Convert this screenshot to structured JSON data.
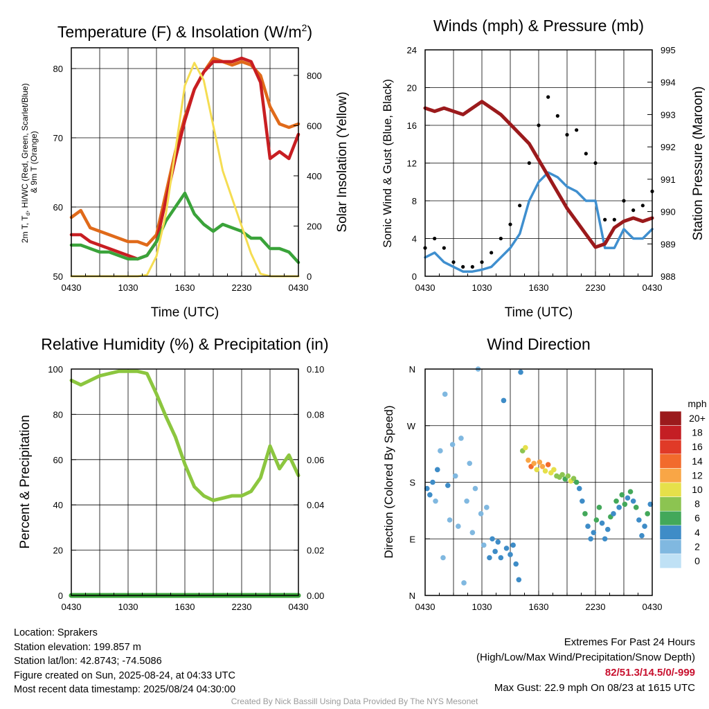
{
  "panels": {
    "temperature": {
      "title": "Temperature (F) & Insolation (W/m²)",
      "ylabel_left_line1": "2m T, T",
      "ylabel_left_sub": "d",
      "ylabel_left_line1b": ", HI/WC (Red, Green, Scarlet/Blue)",
      "ylabel_left_line2": "& 9m T (Orange)",
      "ylabel_right": "Solar Insolation (Yellow)",
      "xlabel": "Time (UTC)"
    },
    "winds": {
      "title": "Winds (mph) & Pressure (mb)",
      "ylabel_left": "Sonic Wind & Gust (Blue, Black)",
      "ylabel_right": "Station Pressure (Maroon)",
      "xlabel": "Time (UTC)"
    },
    "humidity": {
      "title": "Relative Humidity (%) & Precipitation (in)",
      "ylabel_left": "Percent & Precipitation"
    },
    "direction": {
      "title": "Wind Direction",
      "ylabel_left": "Direction (Colored By Speed)",
      "legend_title": "mph",
      "legend_labels": [
        "20+",
        "18",
        "16",
        "14",
        "12",
        "10",
        "8",
        "6",
        "4",
        "2",
        "0"
      ],
      "legend_colors": [
        "#9b1a1c",
        "#c41e24",
        "#e03a27",
        "#f26b2c",
        "#f9a646",
        "#e6e04a",
        "#8cc451",
        "#43a85a",
        "#3e8cc7",
        "#80b8e0",
        "#bfe1f5"
      ]
    }
  },
  "chart_data": [
    {
      "type": "line",
      "title": "Temperature (F) & Insolation (W/m²)",
      "xlabel": "Time (UTC)",
      "ylabel": "2m T, Td, HI/WC (Red, Green, Scarlet/Blue) & 9m T (Orange)",
      "y2label": "Solar Insolation (Yellow)",
      "x_ticks": [
        "0430",
        "1030",
        "1630",
        "2230",
        "0430"
      ],
      "y_ticks": [
        50,
        60,
        70,
        80
      ],
      "y2_ticks": [
        0,
        200,
        400,
        600,
        800
      ],
      "xlim": [
        0,
        24
      ],
      "ylim": [
        50,
        83
      ],
      "y2lim": [
        0,
        910
      ],
      "x_hours": [
        0,
        1,
        2,
        3,
        4,
        5,
        6,
        7,
        8,
        9,
        10,
        11,
        12,
        13,
        14,
        15,
        16,
        17,
        18,
        19,
        20,
        21,
        22,
        23,
        24
      ],
      "series": [
        {
          "color": "#e06a1a",
          "axis": "left",
          "values": [
            58.5,
            59.5,
            57,
            56.5,
            56,
            55.5,
            55,
            55,
            54.5,
            56,
            62,
            68,
            73,
            77,
            79.5,
            81.5,
            81,
            80.5,
            81,
            80.5,
            79,
            74.5,
            72,
            71.5,
            72
          ]
        },
        {
          "color": "#c81e22",
          "axis": "left",
          "values": [
            56,
            56,
            55,
            54.5,
            54,
            53.5,
            53,
            52.5,
            53,
            55,
            61,
            67,
            72.5,
            77,
            79.5,
            81,
            81,
            81,
            81.5,
            81,
            78,
            67,
            68,
            67,
            70.5
          ]
        },
        {
          "color": "#3aa33a",
          "axis": "left",
          "values": [
            54.5,
            54.5,
            54,
            53.5,
            53.5,
            53,
            52.5,
            52.5,
            53,
            55,
            58,
            60,
            62,
            59,
            57.5,
            56.5,
            57.5,
            57,
            56.5,
            55.5,
            55.5,
            54,
            54,
            53.5,
            52
          ]
        },
        {
          "color": "#f5dd52",
          "axis": "right",
          "values": [
            0,
            0,
            0,
            0,
            0,
            0,
            0,
            0,
            5,
            80,
            250,
            500,
            760,
            850,
            780,
            600,
            420,
            310,
            200,
            90,
            10,
            0,
            0,
            0,
            0
          ]
        }
      ]
    },
    {
      "type": "line",
      "title": "Winds (mph) & Pressure (mb)",
      "xlabel": "Time (UTC)",
      "ylabel": "Sonic Wind & Gust (Blue, Black)",
      "y2label": "Station Pressure (Maroon)",
      "x_ticks": [
        "0430",
        "1030",
        "1630",
        "2230",
        "0430"
      ],
      "y_ticks": [
        0,
        4,
        8,
        12,
        16,
        20,
        24
      ],
      "y2_ticks": [
        988,
        989,
        990,
        991,
        992,
        993,
        994,
        995
      ],
      "xlim": [
        0,
        24
      ],
      "ylim": [
        0,
        24
      ],
      "y2lim": [
        988,
        995
      ],
      "x_hours": [
        0,
        1,
        2,
        3,
        4,
        5,
        6,
        7,
        8,
        9,
        10,
        11,
        12,
        13,
        14,
        15,
        16,
        17,
        18,
        19,
        20,
        21,
        22,
        23,
        24
      ],
      "series": [
        {
          "color": "#3f8fcf",
          "axis": "left",
          "marker": "line",
          "values": [
            2,
            2.5,
            1.5,
            1,
            0.5,
            0.5,
            0.7,
            1,
            2,
            3,
            4.5,
            8,
            10,
            11,
            10.5,
            9.5,
            9,
            8,
            8,
            3,
            3,
            5,
            4,
            4,
            5
          ]
        },
        {
          "color": "#000000",
          "axis": "left",
          "marker": "dots",
          "values": [
            3,
            4,
            3,
            1.5,
            1,
            1,
            1.5,
            2.5,
            4,
            5.5,
            7.5,
            12,
            16,
            19,
            17,
            15,
            15.5,
            13,
            12,
            6,
            6,
            8,
            7,
            7.5,
            9
          ]
        },
        {
          "color": "#9b1a1c",
          "axis": "right",
          "values": [
            993.2,
            993.1,
            993.2,
            993.1,
            993.0,
            993.2,
            993.4,
            993.2,
            993.0,
            992.7,
            992.4,
            992.1,
            991.6,
            991.1,
            990.6,
            990.1,
            989.7,
            989.3,
            988.9,
            989.0,
            989.5,
            989.7,
            989.8,
            989.7,
            989.8
          ]
        }
      ]
    },
    {
      "type": "line",
      "title": "Relative Humidity (%) & Precipitation (in)",
      "ylabel": "Percent & Precipitation",
      "x_ticks": [
        "0430",
        "1030",
        "1630",
        "2230",
        "0430"
      ],
      "y_ticks": [
        0,
        20,
        40,
        60,
        80,
        100
      ],
      "y2_ticks": [
        "0.00",
        "0.02",
        "0.04",
        "0.06",
        "0.08",
        "0.10"
      ],
      "xlim": [
        0,
        24
      ],
      "ylim": [
        0,
        100
      ],
      "y2lim": [
        0,
        0.1
      ],
      "x_hours": [
        0,
        1,
        2,
        3,
        4,
        5,
        6,
        7,
        8,
        9,
        10,
        11,
        12,
        13,
        14,
        15,
        16,
        17,
        18,
        19,
        20,
        21,
        22,
        23,
        24
      ],
      "series": [
        {
          "color": "#8cc63f",
          "axis": "left",
          "values": [
            95,
            93,
            95,
            97,
            98,
            99,
            99,
            99,
            98,
            89,
            79,
            70,
            58,
            48,
            44,
            42,
            43,
            44,
            44,
            46,
            52,
            66,
            56,
            62,
            53
          ]
        },
        {
          "color": "#3aa33a",
          "axis": "right",
          "values": [
            0,
            0,
            0,
            0,
            0,
            0,
            0,
            0,
            0,
            0,
            0,
            0,
            0,
            0,
            0,
            0,
            0,
            0,
            0,
            0,
            0,
            0,
            0,
            0,
            0
          ]
        }
      ]
    },
    {
      "type": "scatter",
      "title": "Wind Direction",
      "ylabel": "Direction (Colored By Speed)",
      "x_ticks": [
        "0430",
        "1030",
        "1630",
        "2230",
        "0430"
      ],
      "y_ticks": [
        "N",
        "E",
        "S",
        "W",
        "N"
      ],
      "xlim": [
        0,
        24
      ],
      "ylim": [
        0,
        360
      ],
      "points": [
        [
          0.2,
          170,
          4
        ],
        [
          0.5,
          160,
          3
        ],
        [
          0.8,
          180,
          3
        ],
        [
          1.1,
          150,
          2
        ],
        [
          1.3,
          200,
          3
        ],
        [
          1.6,
          230,
          2
        ],
        [
          1.9,
          60,
          2
        ],
        [
          2.1,
          320,
          1
        ],
        [
          2.4,
          175,
          3
        ],
        [
          2.6,
          120,
          2
        ],
        [
          2.9,
          240,
          2
        ],
        [
          3.2,
          190,
          1
        ],
        [
          3.5,
          110,
          1
        ],
        [
          3.8,
          250,
          2
        ],
        [
          4.1,
          20,
          1
        ],
        [
          4.4,
          150,
          2
        ],
        [
          4.7,
          210,
          1
        ],
        [
          5.0,
          100,
          1
        ],
        [
          5.3,
          170,
          1
        ],
        [
          5.6,
          360,
          1
        ],
        [
          5.9,
          130,
          1
        ],
        [
          6.2,
          80,
          1
        ],
        [
          6.5,
          140,
          2
        ],
        [
          6.8,
          60,
          3
        ],
        [
          7.1,
          90,
          4
        ],
        [
          7.4,
          70,
          4
        ],
        [
          7.7,
          85,
          4
        ],
        [
          8.0,
          60,
          3
        ],
        [
          8.3,
          310,
          4
        ],
        [
          8.6,
          75,
          4
        ],
        [
          9.0,
          65,
          3
        ],
        [
          9.3,
          80,
          4
        ],
        [
          9.6,
          50,
          3
        ],
        [
          9.9,
          25,
          4
        ],
        [
          10.1,
          355,
          4
        ],
        [
          10.3,
          230,
          8
        ],
        [
          10.6,
          235,
          9
        ],
        [
          10.9,
          215,
          11
        ],
        [
          11.2,
          205,
          13
        ],
        [
          11.5,
          210,
          12
        ],
        [
          11.8,
          200,
          10
        ],
        [
          12.1,
          212,
          11
        ],
        [
          12.4,
          205,
          12
        ],
        [
          12.7,
          198,
          10
        ],
        [
          13.0,
          208,
          13
        ],
        [
          13.3,
          195,
          9
        ],
        [
          13.6,
          200,
          10
        ],
        [
          13.9,
          190,
          7
        ],
        [
          14.2,
          188,
          8
        ],
        [
          14.5,
          192,
          7
        ],
        [
          14.8,
          185,
          6
        ],
        [
          15.1,
          190,
          8
        ],
        [
          15.4,
          182,
          9
        ],
        [
          15.7,
          186,
          7
        ],
        [
          16.0,
          180,
          5
        ],
        [
          16.3,
          170,
          4
        ],
        [
          16.6,
          150,
          4
        ],
        [
          16.9,
          130,
          5
        ],
        [
          17.2,
          110,
          3
        ],
        [
          17.5,
          90,
          3
        ],
        [
          17.8,
          100,
          4
        ],
        [
          18.1,
          120,
          5
        ],
        [
          18.4,
          140,
          5
        ],
        [
          18.7,
          115,
          4
        ],
        [
          19.0,
          90,
          4
        ],
        [
          19.3,
          105,
          3
        ],
        [
          19.6,
          125,
          5
        ],
        [
          19.9,
          130,
          4
        ],
        [
          20.2,
          150,
          5
        ],
        [
          20.5,
          140,
          4
        ],
        [
          20.8,
          160,
          6
        ],
        [
          21.1,
          145,
          5
        ],
        [
          21.4,
          155,
          4
        ],
        [
          21.7,
          165,
          5
        ],
        [
          22.0,
          150,
          4
        ],
        [
          22.3,
          140,
          5
        ],
        [
          22.6,
          120,
          4
        ],
        [
          22.9,
          95,
          4
        ],
        [
          23.2,
          110,
          3
        ],
        [
          23.5,
          130,
          5
        ],
        [
          23.8,
          145,
          4
        ]
      ]
    }
  ],
  "info": {
    "location": "Location: Sprakers",
    "elevation": "Station elevation: 199.857 m",
    "latlon": "Station lat/lon: 42.8743; -74.5086",
    "created": "Figure created on Sun, 2025-08-24, at 04:33 UTC",
    "recent": "Most recent data timestamp: 2025/08/24 04:30:00"
  },
  "extremes": {
    "title": "Extremes For Past 24 Hours",
    "subtitle": "(High/Low/Max Wind/Precipitation/Snow Depth)",
    "values": "82/51.3/14.5/0/-999",
    "max_gust": "Max Gust: 22.9 mph On 08/23 at 1615 UTC"
  },
  "credit": "Created By Nick Bassill Using Data Provided By The NYS Mesonet"
}
